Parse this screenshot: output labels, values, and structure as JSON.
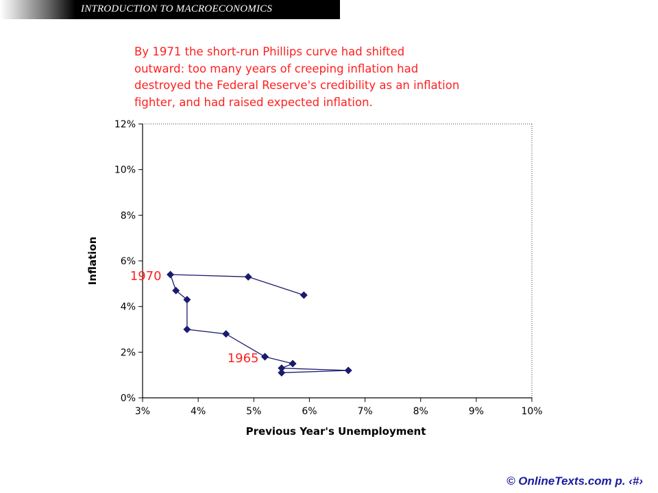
{
  "header": {
    "title": "INTRODUCTION TO MACROECONOMICS"
  },
  "caption": {
    "lines": [
      "By 1971 the short-run Phillips curve had shifted",
      "outward: too many years of creeping inflation had",
      "destroyed the Federal Reserve's credibility as an inflation",
      "fighter, and had raised expected inflation."
    ]
  },
  "chart_data": {
    "type": "line",
    "xlabel": "Previous Year's Unemployment",
    "ylabel": "Inflation",
    "xlim": [
      3,
      10
    ],
    "ylim": [
      0,
      12
    ],
    "x_ticks": [
      "3%",
      "4%",
      "5%",
      "6%",
      "7%",
      "8%",
      "9%",
      "10%"
    ],
    "y_ticks": [
      "0%",
      "2%",
      "4%",
      "6%",
      "8%",
      "10%",
      "12%"
    ],
    "grid": false,
    "line_color": "#1a1a6e",
    "marker": "diamond",
    "series": [
      {
        "points": [
          {
            "x": 5.2,
            "y": 1.8
          },
          {
            "x": 4.5,
            "y": 2.8
          },
          {
            "x": 3.8,
            "y": 3.0
          },
          {
            "x": 3.8,
            "y": 4.3
          },
          {
            "x": 3.6,
            "y": 4.7
          },
          {
            "x": 3.5,
            "y": 5.4
          },
          {
            "x": 4.9,
            "y": 5.3
          },
          {
            "x": 5.9,
            "y": 4.5
          }
        ]
      },
      {
        "points": [
          {
            "x": 5.2,
            "y": 1.8
          },
          {
            "x": 5.7,
            "y": 1.5
          },
          {
            "x": 5.5,
            "y": 1.3
          },
          {
            "x": 6.7,
            "y": 1.2
          },
          {
            "x": 5.5,
            "y": 1.1
          }
        ]
      }
    ],
    "annotations": [
      {
        "text": "1970",
        "x": 3.5,
        "y": 5.4,
        "color": "#ff2020"
      },
      {
        "text": "1965",
        "x": 5.2,
        "y": 1.8,
        "color": "#ff2020"
      }
    ]
  },
  "footer": {
    "copyright": "© OnlineTexts.com",
    "page": "p. ‹#›"
  }
}
